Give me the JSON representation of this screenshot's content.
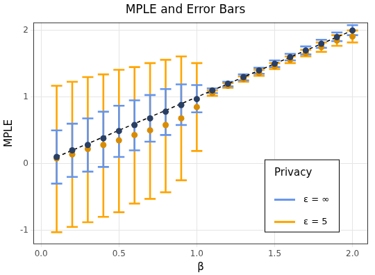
{
  "chart_data": {
    "type": "scatter",
    "title": "MPLE and Error Bars",
    "x_label": "β",
    "y_label": "MPLE",
    "x": [
      0.1,
      0.2,
      0.3,
      0.4,
      0.5,
      0.6,
      0.7,
      0.8,
      0.9,
      1.0,
      1.1,
      1.2,
      1.3,
      1.4,
      1.5,
      1.6,
      1.7,
      1.8,
      1.9,
      2.0
    ],
    "xlim": [
      -0.05,
      2.1
    ],
    "xticks": [
      {
        "value": 0,
        "label": "0.0"
      },
      {
        "value": 0.5,
        "label": "0.5"
      },
      {
        "value": 1,
        "label": "1.0"
      },
      {
        "value": 1.5,
        "label": "1.5"
      },
      {
        "value": 2,
        "label": "2.0"
      }
    ],
    "ylim": [
      -1.21,
      2.12
    ],
    "yticks": [
      -1,
      0,
      1,
      2
    ],
    "grid": true,
    "legend": "bottom right",
    "legend_title": "Privacy",
    "series": [
      {
        "type": "line",
        "line_style": "dashed",
        "color": "#000000",
        "values": [
          0.1,
          0.2,
          0.3,
          0.4,
          0.5,
          0.6,
          0.7,
          0.8,
          0.9,
          1.0,
          1.1,
          1.2,
          1.3,
          1.4,
          1.5,
          1.6,
          1.7,
          1.8,
          1.9,
          2.0
        ]
      },
      {
        "name": "ε = ∞",
        "color": "#6495ed",
        "marker": "circle",
        "values": [
          0.1,
          0.2,
          0.28,
          0.38,
          0.49,
          0.58,
          0.68,
          0.78,
          0.88,
          0.97,
          1.1,
          1.2,
          1.3,
          1.4,
          1.5,
          1.6,
          1.7,
          1.8,
          1.9,
          2.0
        ],
        "lower": [
          -0.3,
          -0.2,
          -0.12,
          -0.05,
          0.1,
          0.2,
          0.33,
          0.43,
          0.58,
          0.77,
          1.06,
          1.16,
          1.25,
          1.35,
          1.45,
          1.55,
          1.64,
          1.74,
          1.84,
          1.93
        ],
        "upper": [
          0.5,
          0.6,
          0.68,
          0.78,
          0.87,
          0.95,
          1.03,
          1.12,
          1.19,
          1.18,
          1.13,
          1.23,
          1.34,
          1.44,
          1.55,
          1.65,
          1.76,
          1.86,
          1.97,
          2.08
        ]
      },
      {
        "name": "ε = 5",
        "color": "#ffa500",
        "marker": "circle",
        "values": [
          0.08,
          0.14,
          0.22,
          0.28,
          0.35,
          0.43,
          0.5,
          0.58,
          0.68,
          0.85,
          1.06,
          1.17,
          1.27,
          1.36,
          1.46,
          1.56,
          1.66,
          1.75,
          1.85,
          1.91
        ],
        "lower": [
          -1.03,
          -0.95,
          -0.88,
          -0.8,
          -0.73,
          -0.6,
          -0.53,
          -0.43,
          -0.25,
          0.19,
          1.02,
          1.14,
          1.23,
          1.32,
          1.42,
          1.51,
          1.61,
          1.68,
          1.77,
          1.82
        ],
        "upper": [
          1.17,
          1.23,
          1.3,
          1.34,
          1.41,
          1.45,
          1.51,
          1.56,
          1.61,
          1.51,
          1.1,
          1.21,
          1.31,
          1.41,
          1.51,
          1.61,
          1.71,
          1.82,
          1.93,
          2.0
        ]
      }
    ]
  }
}
